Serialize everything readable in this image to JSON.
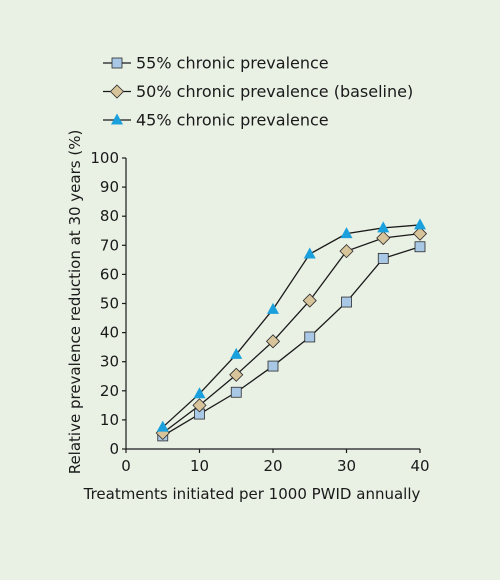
{
  "chart_data": {
    "type": "line",
    "xlabel": "Treatments initiated per 1000 PWID annually",
    "ylabel": "Relative prevalence reduction at 30 years (%)",
    "xlim": [
      0,
      40
    ],
    "ylim": [
      0,
      100
    ],
    "x_ticks": [
      0,
      10,
      20,
      30,
      40
    ],
    "y_ticks": [
      0,
      10,
      20,
      30,
      40,
      50,
      60,
      70,
      80,
      90,
      100
    ],
    "grid": false,
    "legend_position": "top-left",
    "x": [
      5,
      10,
      15,
      20,
      25,
      30,
      35,
      40
    ],
    "series": [
      {
        "name": "55% chronic prevalence",
        "marker": "square",
        "color": "#a9c8e5",
        "values": [
          4.5,
          12,
          19.5,
          28.5,
          38.5,
          50.5,
          65.5,
          69.5
        ]
      },
      {
        "name": "50% chronic prevalence (baseline)",
        "marker": "diamond",
        "color": "#d7c49a",
        "values": [
          5.5,
          15,
          25.5,
          37,
          51,
          68,
          72.5,
          74
        ]
      },
      {
        "name": "45% chronic prevalence",
        "marker": "triangle",
        "color": "#1aa0dc",
        "values": [
          7.5,
          19,
          32.5,
          48,
          67,
          74,
          76,
          77
        ]
      }
    ]
  }
}
